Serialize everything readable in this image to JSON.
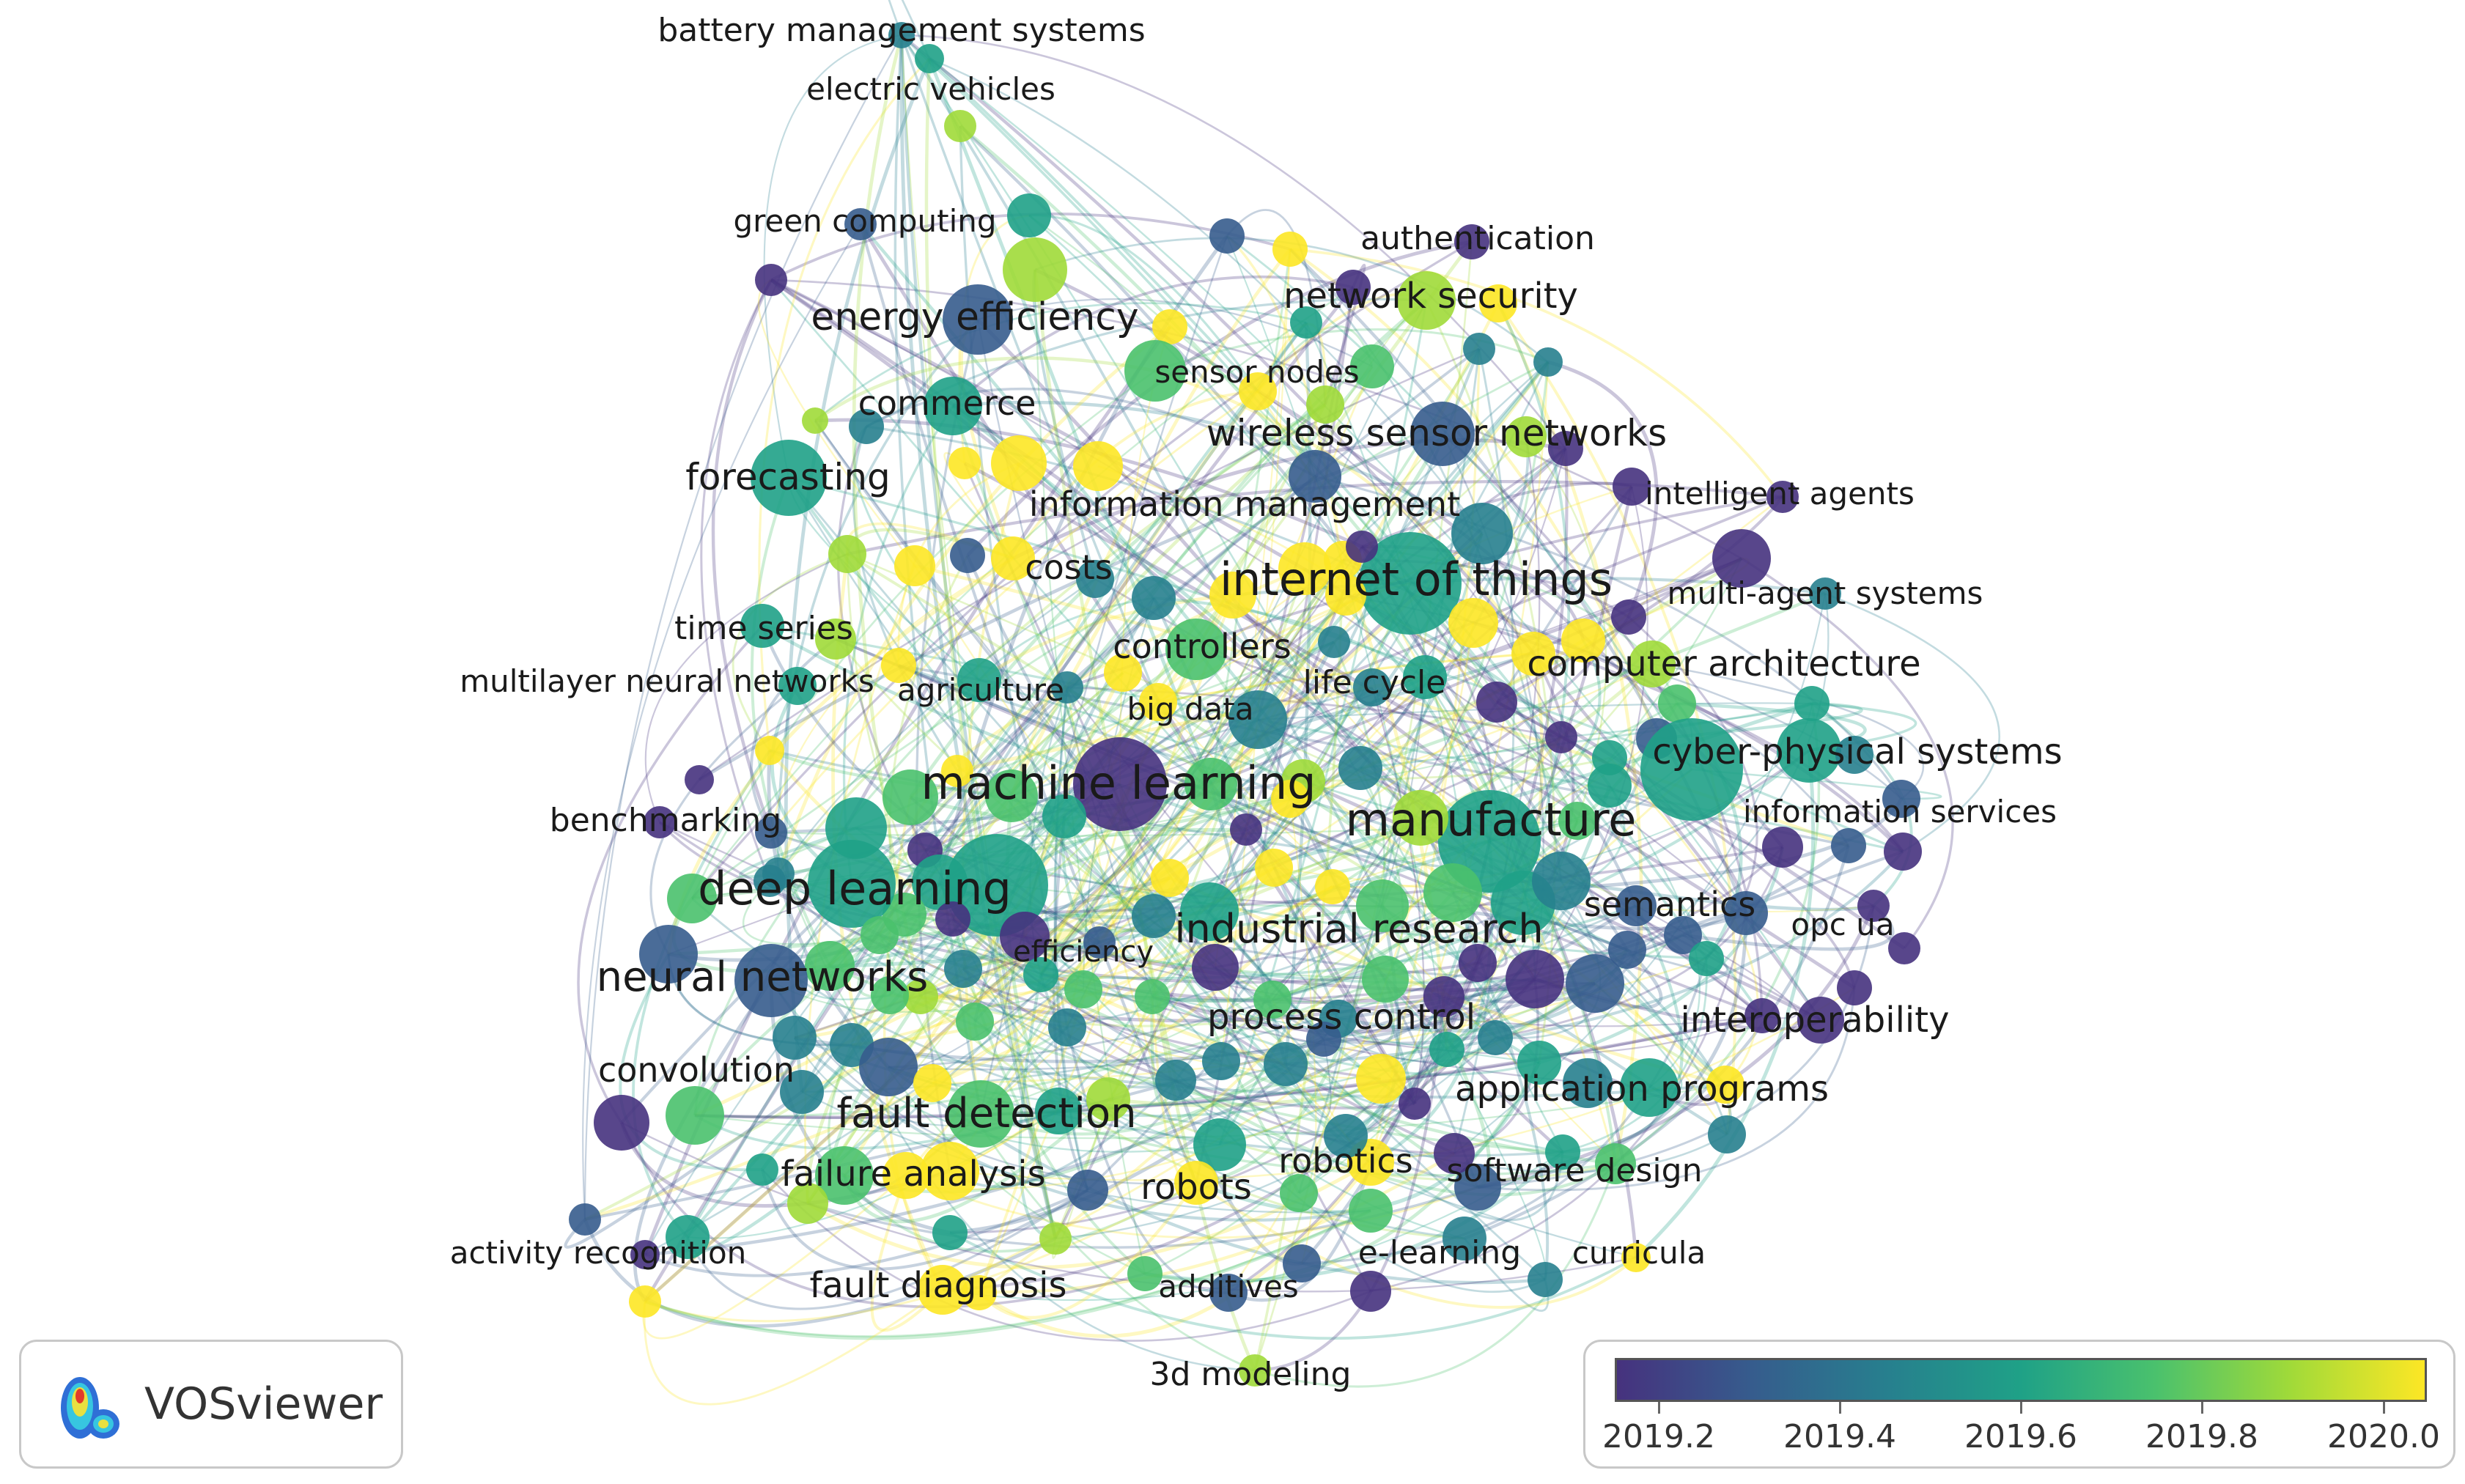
{
  "app": {
    "name": "VOSviewer"
  },
  "colors": {
    "scale": [
      "#46327e",
      "#365c8d",
      "#277f8e",
      "#1fa187",
      "#4ac16d",
      "#a0da39",
      "#fde725"
    ]
  },
  "legend": {
    "ticks": [
      "2019.2",
      "2019.4",
      "2019.6",
      "2019.8",
      "2020.0"
    ]
  },
  "labels": [
    "battery management systems",
    "electric vehicles",
    "green computing",
    "authentication",
    "network security",
    "energy efficiency",
    "sensor nodes",
    "commerce",
    "wireless sensor networks",
    "forecasting",
    "intelligent agents",
    "information management",
    "costs",
    "internet of things",
    "multi-agent systems",
    "time series",
    "controllers",
    "computer architecture",
    "multilayer neural networks",
    "agriculture",
    "life cycle",
    "big data",
    "cyber-physical systems",
    "machine learning",
    "benchmarking",
    "manufacture",
    "information services",
    "deep learning",
    "semantics",
    "opc ua",
    "efficiency",
    "industrial research",
    "neural networks",
    "interoperability",
    "process control",
    "convolution",
    "application programs",
    "fault detection",
    "robotics",
    "software design",
    "failure analysis",
    "robots",
    "activity recognition",
    "e-learning",
    "curricula",
    "fault diagnosis",
    "additives",
    "3d modeling"
  ]
}
